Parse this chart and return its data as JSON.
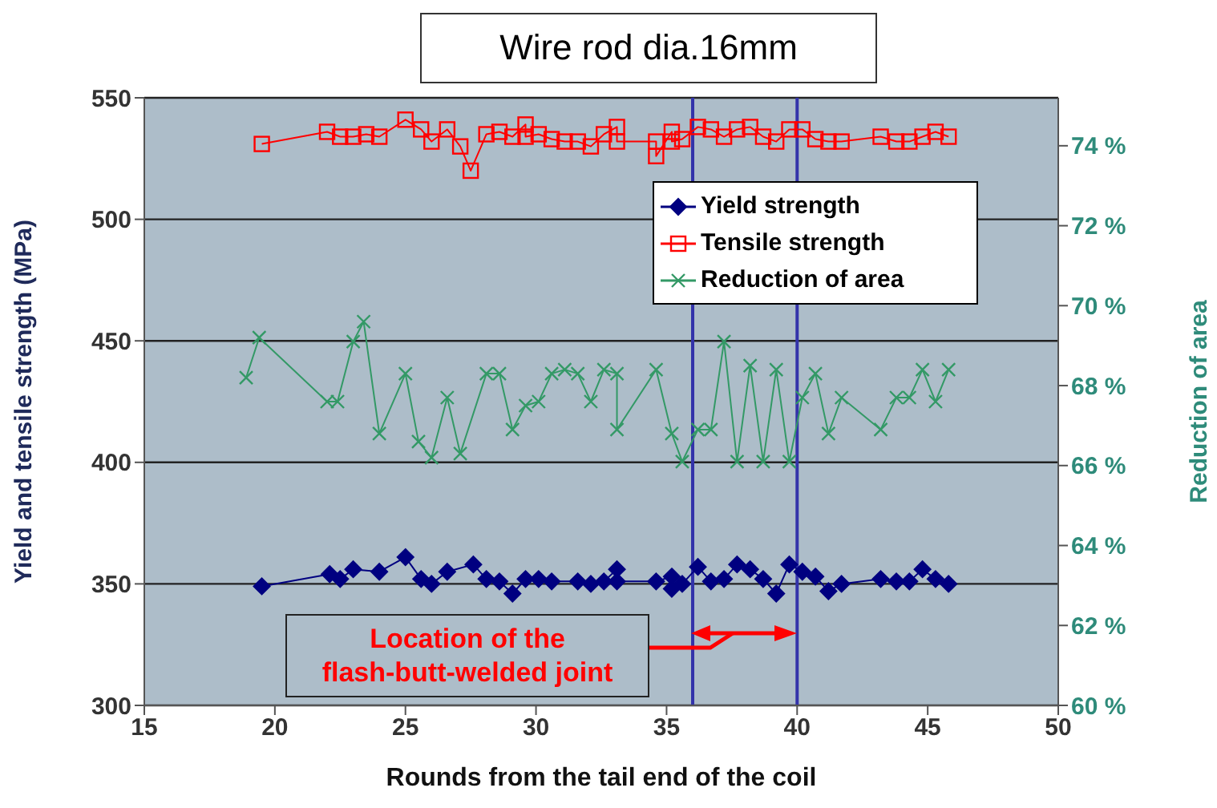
{
  "chart_data": {
    "type": "line",
    "title": "Wire rod dia.16mm",
    "xlabel": "Rounds from the tail end of the coil",
    "ylabel": "Yield and tensile strength (MPa)",
    "y2label": "Reduction of area",
    "xlim": [
      15,
      50
    ],
    "xticks": [
      15,
      20,
      25,
      30,
      35,
      40,
      45,
      50
    ],
    "ylim": [
      300,
      550
    ],
    "yticks": [
      300,
      350,
      400,
      450,
      500,
      550
    ],
    "y2lim": [
      60,
      75.2
    ],
    "y2ticks": [
      {
        "value": 60,
        "label": "60 %"
      },
      {
        "value": 62,
        "label": "62 %"
      },
      {
        "value": 64,
        "label": "64 %"
      },
      {
        "value": 66,
        "label": "66 %"
      },
      {
        "value": 68,
        "label": "68 %"
      },
      {
        "value": 70,
        "label": "70 %"
      },
      {
        "value": 72,
        "label": "72 %"
      },
      {
        "value": 74,
        "label": "74 %"
      }
    ],
    "grid": "y",
    "legend": "top right",
    "series": [
      {
        "name": "Yield strength",
        "color": "#000080",
        "marker": "diamond",
        "x": [
          19.5,
          22.1,
          22.5,
          23.0,
          24.0,
          25.0,
          25.6,
          26.0,
          26.6,
          27.6,
          28.1,
          28.6,
          29.1,
          29.6,
          30.1,
          30.6,
          31.6,
          32.1,
          32.6,
          33.1,
          33.1,
          34.6,
          35.2,
          35.2,
          35.6,
          36.2,
          36.7,
          37.2,
          37.7,
          38.2,
          38.7,
          39.2,
          39.7,
          40.2,
          40.7,
          41.2,
          41.7,
          43.2,
          43.8,
          44.3,
          44.8,
          45.3,
          45.8
        ],
        "values": [
          349,
          354,
          352,
          356,
          355,
          361,
          352,
          350,
          355,
          358,
          352,
          351,
          346,
          352,
          352,
          351,
          351,
          350,
          351,
          356,
          351,
          351,
          353,
          348,
          350,
          357,
          351,
          352,
          358,
          356,
          352,
          346,
          358,
          355,
          353,
          347,
          350,
          352,
          351,
          351,
          356,
          352,
          350
        ]
      },
      {
        "name": "Tensile strength",
        "color": "#ff0000",
        "marker": "square",
        "x": [
          19.5,
          22.0,
          22.5,
          23.0,
          23.5,
          24.0,
          25.0,
          25.6,
          26.0,
          26.6,
          27.1,
          27.5,
          28.1,
          28.6,
          29.1,
          29.6,
          29.6,
          30.1,
          30.6,
          31.1,
          31.6,
          32.1,
          32.6,
          33.1,
          33.1,
          34.6,
          34.6,
          35.2,
          35.2,
          35.6,
          36.2,
          36.7,
          37.2,
          37.7,
          38.2,
          38.7,
          39.2,
          39.7,
          40.2,
          40.7,
          41.2,
          41.7,
          43.2,
          43.8,
          44.3,
          44.8,
          45.3,
          45.8
        ],
        "values": [
          531,
          536,
          534,
          534,
          535,
          534,
          541,
          537,
          532,
          537,
          530,
          520,
          535,
          536,
          534,
          539,
          534,
          535,
          533,
          532,
          532,
          530,
          535,
          538,
          532,
          532,
          526,
          536,
          532,
          533,
          538,
          537,
          534,
          537,
          538,
          534,
          532,
          537,
          537,
          533,
          532,
          532,
          534,
          532,
          532,
          534,
          536,
          534
        ]
      },
      {
        "name": "Reduction of area",
        "color": "#339966",
        "marker": "cross",
        "axis": "y2",
        "x": [
          18.9,
          19.4,
          22.0,
          22.4,
          23.0,
          23.4,
          24.0,
          25.0,
          25.5,
          26.0,
          26.6,
          27.1,
          28.1,
          28.6,
          29.1,
          29.6,
          30.1,
          30.6,
          31.1,
          31.6,
          32.1,
          32.6,
          33.1,
          33.1,
          34.6,
          35.2,
          35.6,
          36.2,
          36.7,
          37.2,
          37.7,
          38.2,
          38.7,
          39.2,
          39.7,
          40.2,
          40.7,
          41.2,
          41.7,
          43.2,
          43.8,
          44.3,
          44.8,
          45.3,
          45.8
        ],
        "values": [
          68.2,
          69.2,
          67.6,
          67.6,
          69.1,
          69.6,
          66.8,
          68.3,
          66.6,
          66.2,
          67.7,
          66.3,
          68.3,
          68.3,
          66.9,
          67.5,
          67.6,
          68.3,
          68.4,
          68.3,
          67.6,
          68.4,
          68.3,
          66.9,
          68.4,
          66.8,
          66.1,
          66.9,
          66.9,
          69.1,
          66.1,
          68.5,
          66.1,
          68.4,
          66.1,
          67.7,
          68.3,
          66.8,
          67.7,
          66.9,
          67.7,
          67.7,
          68.4,
          67.6,
          68.4
        ]
      }
    ],
    "ref_lines": [
      {
        "axis": "x",
        "value": 36,
        "color": "#3333aa"
      },
      {
        "axis": "x",
        "value": 40,
        "color": "#3333aa"
      }
    ],
    "annotations": [
      "Location of the flash-butt-welded joint"
    ]
  }
}
